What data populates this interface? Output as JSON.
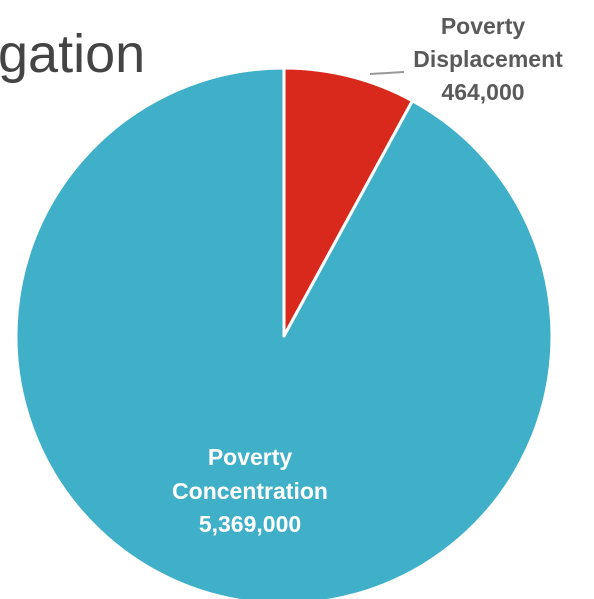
{
  "chart_data": {
    "type": "pie",
    "title": "gation",
    "colors": {
      "poverty_displacement": "#d9291c",
      "poverty_concentration": "#3fb0c8",
      "displacement_label": "#5a5a5a",
      "concentration_label": "#ffffff",
      "leader_line": "#999999",
      "slice_border": "#ffffff"
    },
    "slices": [
      {
        "key": "poverty_displacement",
        "label_line1": "Poverty",
        "label_line2": "Displacement",
        "value_label": "464,000",
        "value": 464000
      },
      {
        "key": "poverty_concentration",
        "label_line1": "Poverty",
        "label_line2": "Concentration",
        "value_label": "5,369,000",
        "value": 5369000
      }
    ]
  }
}
